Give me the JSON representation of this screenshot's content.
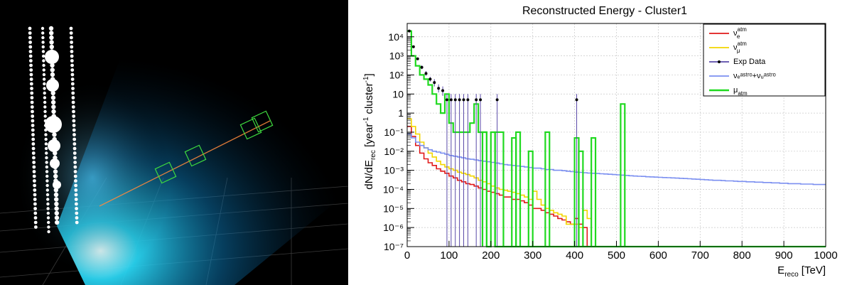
{
  "event_display": {
    "description_icon": "neutrino-event-display"
  },
  "colors": {
    "nu_e_atm": "#e11a1a",
    "nu_mu_atm": "#f2d600",
    "exp_data_marker": "#000000",
    "exp_data_line": "#5a4aa8",
    "nu_astro": "#7b8ff0",
    "mu_atm": "#1fd91f",
    "grid": "#c8c8c8"
  },
  "chart_data": {
    "type": "line",
    "title": "Reconstructed Energy - Cluster1",
    "xlabel": "E_reco [TeV]",
    "ylabel": "dN/dE_rec [year^-1 cluster^-1]",
    "xlim": [
      0,
      1000
    ],
    "ylim": [
      1e-07,
      50000
    ],
    "yscale": "log",
    "grid": true,
    "legend_position": "top-right",
    "x_ticks": [
      "0",
      "100",
      "200",
      "300",
      "400",
      "500",
      "600",
      "700",
      "800",
      "900",
      "1000"
    ],
    "y_ticks": [
      "10⁻⁷",
      "10⁻⁶",
      "10⁻⁵",
      "10⁻⁴",
      "10⁻³",
      "10⁻²",
      "10⁻¹",
      "1",
      "10",
      "10²",
      "10³",
      "10⁴"
    ],
    "legend": [
      {
        "key": "nu_e_atm",
        "label_main": "ν",
        "label_sub": "e",
        "label_sup": "atm"
      },
      {
        "key": "nu_mu_atm",
        "label_main": "ν",
        "label_sub": "μ",
        "label_sup": "atm"
      },
      {
        "key": "exp_data",
        "label": "Exp Data"
      },
      {
        "key": "nu_astro",
        "label": "νₑᵃˢᵗʳᵒ+νᵤᵃˢᵗʳᵒ"
      },
      {
        "key": "mu_atm",
        "label_main": "μ",
        "label_sub": "atm"
      }
    ],
    "bin_width": 10,
    "series": [
      {
        "key": "nu_e_atm",
        "values": [
          0.2,
          0.06,
          0.02,
          0.008,
          0.004,
          0.0025,
          0.0018,
          0.0012,
          0.0009,
          0.0007,
          0.0005,
          0.0004,
          0.0003,
          0.00025,
          0.0002,
          0.00018,
          0.00015,
          0.00012,
          0.0001,
          8e-05,
          7e-05,
          6e-05,
          5e-05,
          4e-05,
          4e-05,
          3e-05,
          3e-05,
          2.5e-05,
          2e-05,
          1.5e-05,
          1e-05,
          1e-05,
          8e-06,
          6e-06,
          5e-06,
          4e-06,
          3e-06,
          2.5e-06,
          2e-06,
          1.5e-06,
          3e-06,
          1.5e-06,
          1e-06,
          1e-07
        ]
      },
      {
        "key": "nu_mu_atm",
        "values": [
          0.5,
          0.2,
          0.08,
          0.03,
          0.015,
          0.008,
          0.005,
          0.003,
          0.002,
          0.0015,
          0.0012,
          0.001,
          0.0008,
          0.0007,
          0.0006,
          0.0005,
          0.0004,
          0.0003,
          0.00025,
          0.0002,
          0.00015,
          0.00012,
          0.0001,
          9e-05,
          8e-05,
          7e-05,
          6e-05,
          5e-05,
          4e-05,
          3e-05,
          8e-05,
          3e-05,
          1.5e-05,
          1e-05,
          8e-06,
          6e-06,
          5e-06,
          4e-06,
          1.5e-06,
          1.5e-06,
          1.5e-06,
          1e-06,
          8e-06,
          3e-06,
          1e-07
        ]
      },
      {
        "key": "nu_astro",
        "values": [
          0.08,
          0.05,
          0.03,
          0.02,
          0.015,
          0.012,
          0.01,
          0.009,
          0.008,
          0.007,
          0.006,
          0.0055,
          0.005,
          0.0045,
          0.004,
          0.0038,
          0.0035,
          0.0032,
          0.003,
          0.0028,
          0.0026,
          0.0024,
          0.0022,
          0.002,
          0.0019,
          0.0018,
          0.0017,
          0.0016,
          0.0015,
          0.0014,
          0.0013,
          0.0013,
          0.0012,
          0.0011,
          0.0011,
          0.001,
          0.001,
          0.00095,
          0.0009,
          0.00085,
          0.0008,
          0.00078,
          0.00075,
          0.00072,
          0.0007,
          0.00068,
          0.00066,
          0.00064,
          0.00062,
          0.0006,
          0.00058,
          0.00056,
          0.00054,
          0.00052,
          0.0005,
          0.00049,
          0.00048,
          0.00046,
          0.00045,
          0.00044,
          0.00043,
          0.00042,
          0.00041,
          0.0004,
          0.00039,
          0.00038,
          0.00037,
          0.00036,
          0.00035,
          0.00034,
          0.00033,
          0.00032,
          0.00031,
          0.0003,
          0.0003,
          0.00029,
          0.00028,
          0.00028,
          0.00027,
          0.00026,
          0.00026,
          0.00025,
          0.00025,
          0.00024,
          0.00024,
          0.00023,
          0.00023,
          0.00022,
          0.00022,
          0.00021,
          0.00021,
          0.0002,
          0.0002,
          0.0002,
          0.00019,
          0.00019,
          0.00019,
          0.00018,
          0.00018,
          0.00018
        ]
      },
      {
        "key": "mu_atm",
        "values": [
          20000,
          1000,
          300,
          100,
          60,
          30,
          10,
          3,
          1,
          10,
          0.3,
          0.1,
          0.1,
          0.1,
          0.1,
          0.3,
          3,
          0.1,
          0.1,
          1e-07,
          0.1,
          1e-07,
          1e-07,
          1e-07,
          1e-07,
          1e-07,
          1e-07,
          1e-07,
          1e-07,
          1e-07,
          1e-07,
          1e-07,
          1e-07,
          1e-07,
          1e-07,
          1e-07,
          1e-07,
          1e-07,
          1e-07,
          1e-07,
          1e-07,
          1e-07,
          1e-07,
          1e-07,
          1e-07,
          1e-07,
          1e-07,
          1e-07,
          1e-07,
          1e-07,
          1e-07,
          1e-07,
          1e-07,
          1e-07,
          1e-07,
          1e-07,
          1e-07,
          1e-07,
          1e-07,
          1e-07,
          1e-07,
          1e-07,
          1e-07,
          1e-07,
          1e-07,
          1e-07,
          1e-07,
          1e-07,
          1e-07,
          1e-07,
          1e-07,
          1e-07,
          1e-07,
          1e-07,
          1e-07,
          1e-07,
          1e-07,
          1e-07,
          1e-07,
          1e-07,
          1e-07,
          1e-07,
          1e-07,
          1e-07,
          1e-07,
          1e-07,
          1e-07,
          1e-07,
          1e-07,
          1e-07,
          1e-07,
          1e-07,
          1e-07,
          1e-07,
          1e-07,
          1e-07,
          1e-07,
          1e-07,
          1e-07,
          1e-07
        ]
      }
    ],
    "mu_atm_spikes": [
      {
        "from": 180,
        "to": 190,
        "value": 0.1
      },
      {
        "from": 210,
        "to": 230,
        "value": 0.1
      },
      {
        "from": 250,
        "to": 260,
        "value": 0.05
      },
      {
        "from": 260,
        "to": 270,
        "value": 0.1
      },
      {
        "from": 290,
        "to": 300,
        "value": 0.01
      },
      {
        "from": 330,
        "to": 340,
        "value": 0.1
      },
      {
        "from": 400,
        "to": 410,
        "value": 0.05
      },
      {
        "from": 410,
        "to": 420,
        "value": 0.01
      },
      {
        "from": 440,
        "to": 450,
        "value": 0.05
      },
      {
        "from": 510,
        "to": 520,
        "value": 3
      }
    ],
    "exp_data": {
      "x": [
        5,
        15,
        25,
        35,
        45,
        55,
        65,
        75,
        85,
        95,
        105,
        115,
        125,
        135,
        145,
        165,
        175,
        215,
        405
      ],
      "y": [
        20000,
        3000,
        700,
        250,
        120,
        60,
        40,
        20,
        15,
        5,
        5,
        5,
        5,
        5,
        5,
        5,
        5,
        5,
        5
      ],
      "error_low": [
        18000,
        2500,
        600,
        200,
        90,
        45,
        25,
        12,
        8,
        1e-07,
        1e-07,
        1e-07,
        1e-07,
        1e-07,
        1e-07,
        1e-07,
        1e-07,
        1e-07,
        1e-07
      ],
      "error_high": [
        22000,
        3500,
        800,
        320,
        160,
        80,
        60,
        32,
        25,
        10,
        10,
        10,
        10,
        10,
        10,
        10,
        10,
        10,
        10
      ]
    }
  }
}
